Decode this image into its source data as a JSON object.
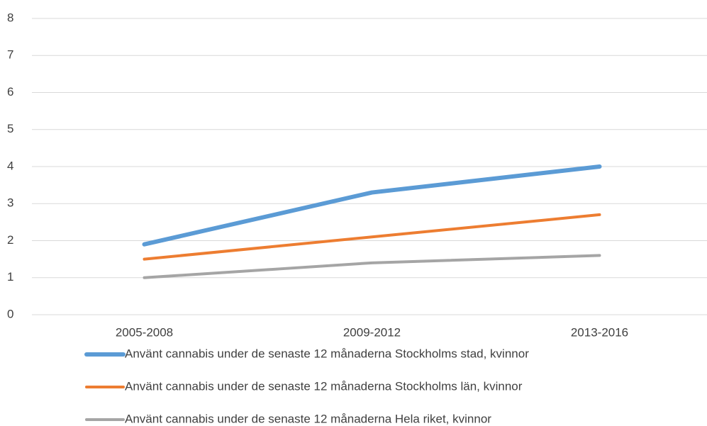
{
  "chart_data": {
    "type": "line",
    "categories": [
      "2005-2008",
      "2009-2012",
      "2013-2016"
    ],
    "series": [
      {
        "name": "Använt cannabis under de senaste 12 månaderna Stockholms stad, kvinnor",
        "color": "#5b9bd5",
        "values": [
          1.9,
          3.3,
          4.0
        ]
      },
      {
        "name": "Använt cannabis under de senaste 12 månaderna Stockholms län, kvinnor",
        "color": "#ed7d31",
        "values": [
          1.5,
          2.1,
          2.7
        ]
      },
      {
        "name": "Använt cannabis under de senaste 12 månaderna Hela riket, kvinnor",
        "color": "#a5a5a5",
        "values": [
          1.0,
          1.4,
          1.6
        ]
      }
    ],
    "ylim": [
      0,
      8
    ],
    "yticks": [
      0,
      1,
      2,
      3,
      4,
      5,
      6,
      7,
      8
    ],
    "grid": true,
    "legend": "bottom"
  }
}
